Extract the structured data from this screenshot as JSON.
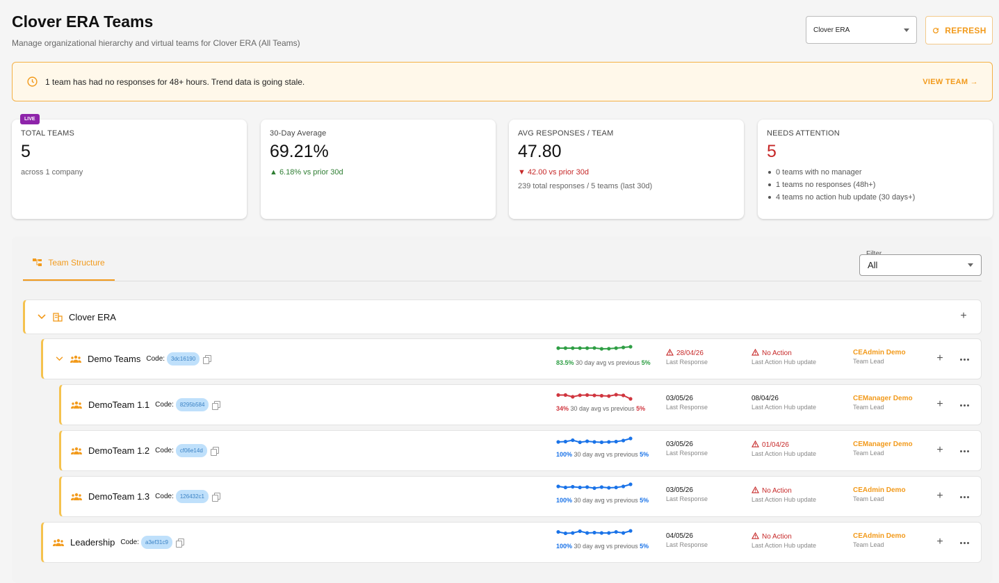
{
  "header": {
    "title": "Clover ERA Teams",
    "subtitle": "Manage organizational hierarchy and virtual teams for Clover ERA (All Teams)",
    "company_select": "Clover ERA",
    "refresh_label": "REFRESH"
  },
  "alert": {
    "text": "1 team has had no responses for 48+ hours. Trend data is going stale.",
    "link": "VIEW TEAM →"
  },
  "cards": {
    "total_teams": {
      "badge": "LIVE",
      "label": "TOTAL TEAMS",
      "value": "5",
      "sub": "across 1 company"
    },
    "avg30": {
      "label": "30-Day Average",
      "value": "69.21%",
      "delta": "▲ 6.18% vs prior 30d"
    },
    "avg_resp": {
      "label": "AVG RESPONSES / TEAM",
      "value": "47.80",
      "delta": "▼ 42.00 vs prior 30d",
      "sub": "239 total responses / 5 teams (last 30d)"
    },
    "attention": {
      "label": "NEEDS ATTENTION",
      "value": "5",
      "items": [
        "0 teams with no manager",
        "1 teams no responses (48h+)",
        "4 teams no action hub update (30 days+)"
      ]
    }
  },
  "panel": {
    "tab_label": "Team Structure",
    "filter_label": "Filter",
    "filter_value": "All"
  },
  "labels": {
    "code": "Code:",
    "caption": "30 day avg vs previous",
    "last_response": "Last Response",
    "last_action": "Last Action Hub update",
    "team_lead": "Team Lead"
  },
  "colors": {
    "accent": "#f29a1b",
    "green": "#2e9e44",
    "red": "#d0363f",
    "blue": "#1a73e8"
  },
  "tree": {
    "root": {
      "name": "Clover ERA",
      "icon": "building-icon"
    },
    "teams": [
      {
        "name": "Demo Teams",
        "code": "3dc16190",
        "pct": "83.5%",
        "delta": "5%",
        "color": "#2e9e44",
        "trend": [
          0.8,
          0.8,
          0.8,
          0.8,
          0.8,
          0.82,
          0.7,
          0.72,
          0.8,
          0.9,
          1.0
        ],
        "last_response": "28/04/26",
        "last_response_warn": true,
        "last_action": "No Action",
        "last_action_warn": true,
        "lead": "CEAdmin Demo"
      },
      {
        "name": "DemoTeam 1.1",
        "code": "8295b584",
        "pct": "34%",
        "delta": "5%",
        "color": "#d0363f",
        "trend": [
          0.65,
          0.65,
          0.4,
          0.62,
          0.65,
          0.6,
          0.55,
          0.5,
          0.7,
          0.6,
          0.1
        ],
        "last_response": "03/05/26",
        "last_response_warn": false,
        "last_action": "08/04/26",
        "last_action_warn": false,
        "lead": "CEManager Demo"
      },
      {
        "name": "DemoTeam 1.2",
        "code": "cf06e14d",
        "pct": "100%",
        "delta": "5%",
        "color": "#1a73e8",
        "trend": [
          0.5,
          0.55,
          0.75,
          0.45,
          0.6,
          0.5,
          0.45,
          0.5,
          0.55,
          0.7,
          1.0
        ],
        "last_response": "03/05/26",
        "last_response_warn": false,
        "last_action": "01/04/26",
        "last_action_warn": true,
        "lead": "CEManager Demo"
      },
      {
        "name": "DemoTeam 1.3",
        "code": "126432c1",
        "pct": "100%",
        "delta": "5%",
        "color": "#1a73e8",
        "trend": [
          0.7,
          0.55,
          0.65,
          0.55,
          0.6,
          0.45,
          0.6,
          0.5,
          0.55,
          0.7,
          1.0
        ],
        "last_response": "03/05/26",
        "last_response_warn": false,
        "last_action": "No Action",
        "last_action_warn": true,
        "lead": "CEAdmin Demo"
      },
      {
        "name": "Leadership",
        "code": "a3ef31c9",
        "pct": "100%",
        "delta": "5%",
        "color": "#1a73e8",
        "trend": [
          0.75,
          0.55,
          0.6,
          0.85,
          0.6,
          0.65,
          0.6,
          0.6,
          0.75,
          0.6,
          0.9
        ],
        "last_response": "04/05/26",
        "last_response_warn": false,
        "last_action": "No Action",
        "last_action_warn": true,
        "lead": "CEAdmin Demo"
      }
    ]
  }
}
